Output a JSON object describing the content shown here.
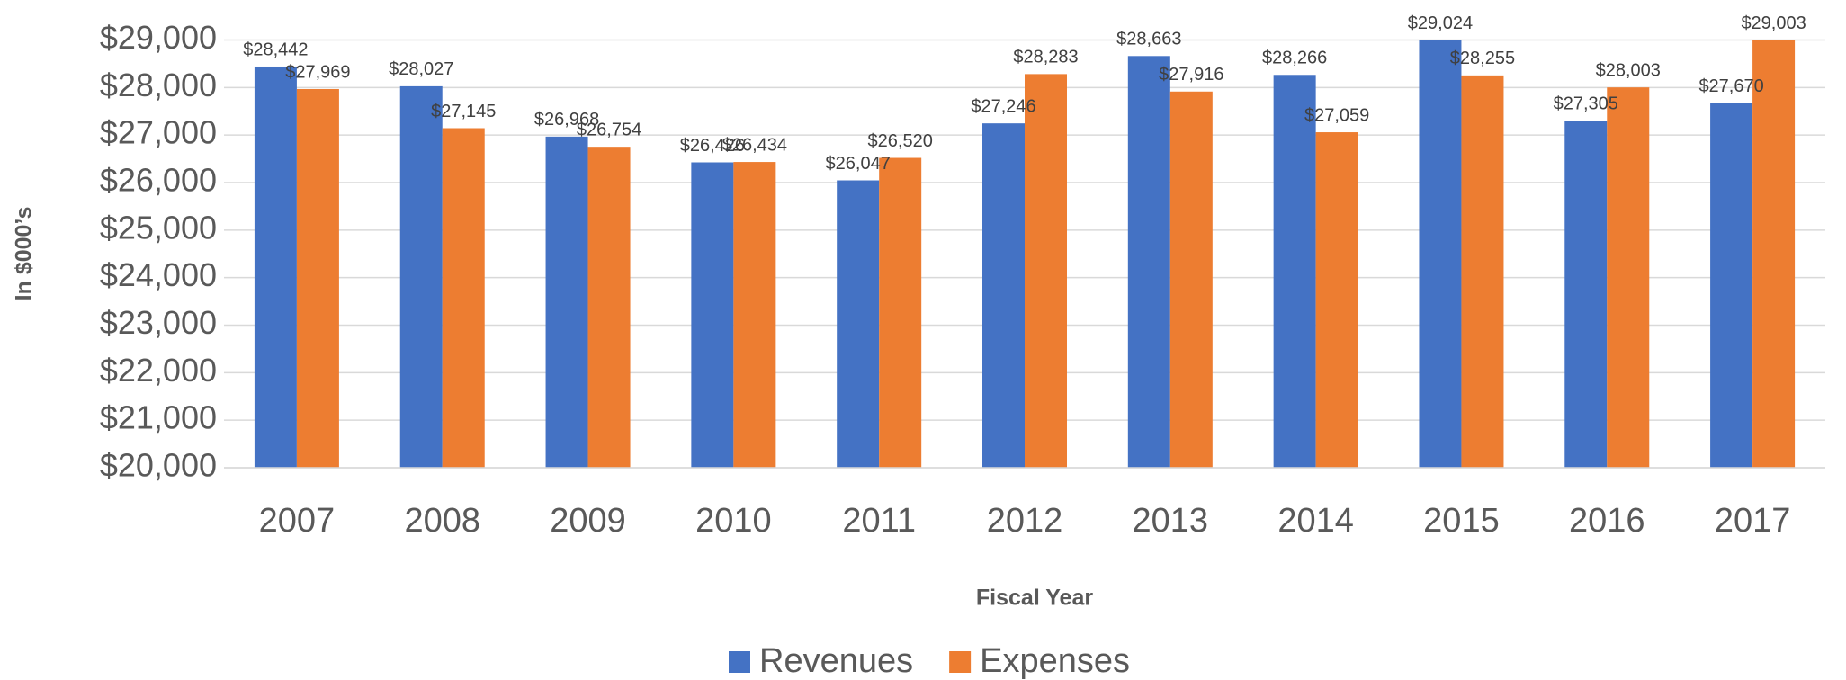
{
  "chart_data": {
    "type": "bar",
    "categories": [
      "2007",
      "2008",
      "2009",
      "2010",
      "2011",
      "2012",
      "2013",
      "2014",
      "2015",
      "2016",
      "2017"
    ],
    "series": [
      {
        "name": "Revenues",
        "color": "#4472c4",
        "values": [
          28442,
          28027,
          26968,
          26426,
          26047,
          27246,
          28663,
          28266,
          29024,
          27305,
          27670
        ],
        "value_labels": [
          "$28,442",
          "$28,027",
          "$26,968",
          "$26,426",
          "$26,047",
          "$27,246",
          "$28,663",
          "$28,266",
          "$29,024",
          "$27,305",
          "$27,670"
        ]
      },
      {
        "name": "Expenses",
        "color": "#ed7d31",
        "values": [
          27969,
          27145,
          26754,
          26434,
          26520,
          28283,
          27916,
          27059,
          28255,
          28003,
          29003
        ],
        "value_labels": [
          "$27,969",
          "$27,145",
          "$26,754",
          "$26,434",
          "$26,520",
          "$28,283",
          "$27,916",
          "$27,059",
          "$28,255",
          "$28,003",
          "$29,003"
        ]
      }
    ],
    "ylim": [
      20000,
      29000
    ],
    "yticks": [
      {
        "value": 20000,
        "label": "$20,000"
      },
      {
        "value": 21000,
        "label": "$21,000"
      },
      {
        "value": 22000,
        "label": "$22,000"
      },
      {
        "value": 23000,
        "label": "$23,000"
      },
      {
        "value": 24000,
        "label": "$24,000"
      },
      {
        "value": 25000,
        "label": "$25,000"
      },
      {
        "value": 26000,
        "label": "$26,000"
      },
      {
        "value": 27000,
        "label": "$27,000"
      },
      {
        "value": 28000,
        "label": "$28,000"
      },
      {
        "value": 29000,
        "label": "$29,000"
      }
    ],
    "grid": true,
    "xlabel": "Fiscal Year",
    "ylabel": "In $000’s",
    "legend": "bottom"
  }
}
